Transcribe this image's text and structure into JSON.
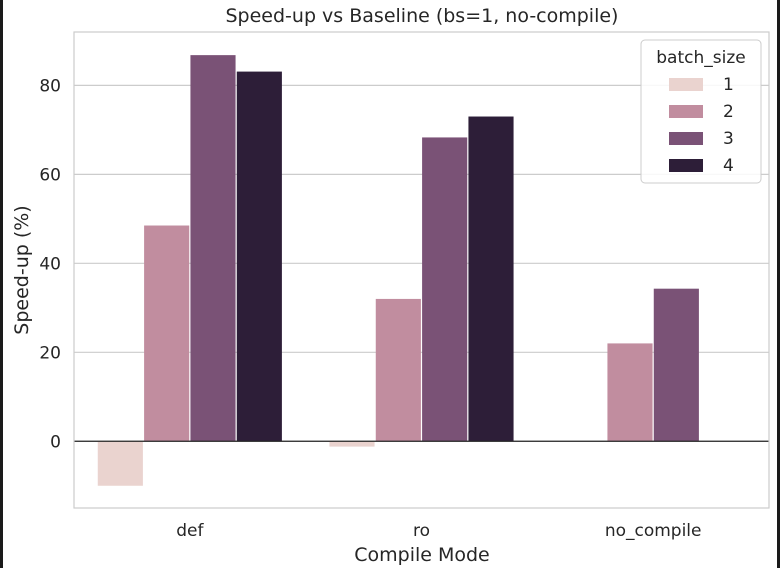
{
  "chart_data": {
    "type": "bar",
    "title": "Speed-up vs Baseline (bs=1, no-compile)",
    "xlabel": "Compile Mode",
    "ylabel": "Speed-up (%)",
    "categories": [
      "def",
      "ro",
      "no_compile"
    ],
    "ylim": [
      -15,
      92
    ],
    "yticks": [
      0,
      20,
      40,
      60,
      80
    ],
    "grid": true,
    "legend_position": "top-right",
    "legend_title": "batch_size",
    "series": [
      {
        "name": "1",
        "color": "#ead3cf",
        "values": [
          -10,
          -1.2,
          0
        ]
      },
      {
        "name": "2",
        "color": "#c18d9f",
        "values": [
          48.5,
          32,
          22
        ]
      },
      {
        "name": "3",
        "color": "#7a5276",
        "values": [
          86.8,
          68.3,
          34.3
        ]
      },
      {
        "name": "4",
        "color": "#2d1e38",
        "values": [
          83.1,
          73,
          null
        ]
      }
    ]
  }
}
